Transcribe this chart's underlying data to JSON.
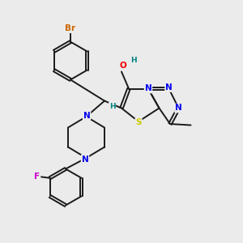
{
  "background_color": "#ebebeb",
  "bond_color": "#1a1a1a",
  "atom_colors": {
    "Br": "#cc6600",
    "F": "#cc00cc",
    "N": "#0000ee",
    "O": "#ee0000",
    "S": "#cccc00",
    "C": "#1a1a1a",
    "H": "#008080"
  },
  "figsize": [
    3.0,
    3.0
  ],
  "dpi": 100
}
